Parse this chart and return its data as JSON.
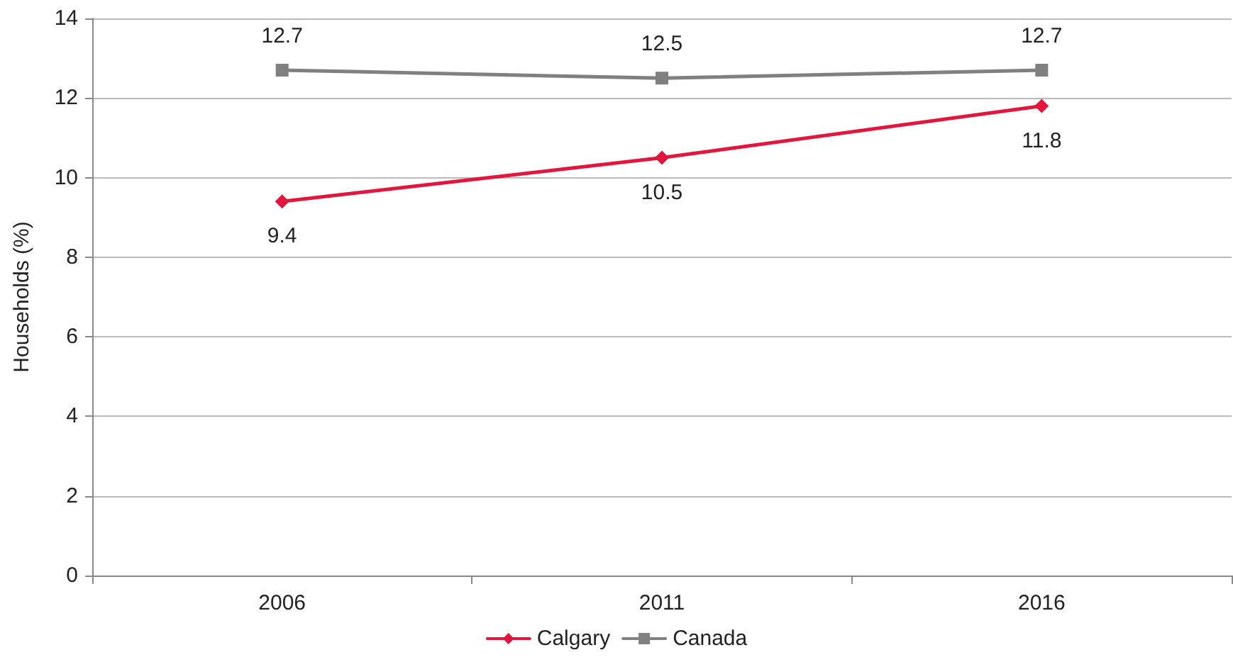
{
  "chart_data": {
    "type": "line",
    "ylabel": "Households (%)",
    "categories": [
      "2006",
      "2011",
      "2016"
    ],
    "series": [
      {
        "name": "Calgary",
        "color": "#e3173e",
        "marker": "diamond",
        "values": [
          9.4,
          10.5,
          11.8
        ]
      },
      {
        "name": "Canada",
        "color": "#808080",
        "marker": "square",
        "values": [
          12.7,
          12.5,
          12.7
        ]
      }
    ],
    "ylim": [
      0,
      14
    ],
    "yticks": [
      0,
      2,
      4,
      6,
      8,
      10,
      12,
      14
    ],
    "grid": "y",
    "legend": "bottom",
    "data_labels": true,
    "line_style": "solid"
  }
}
